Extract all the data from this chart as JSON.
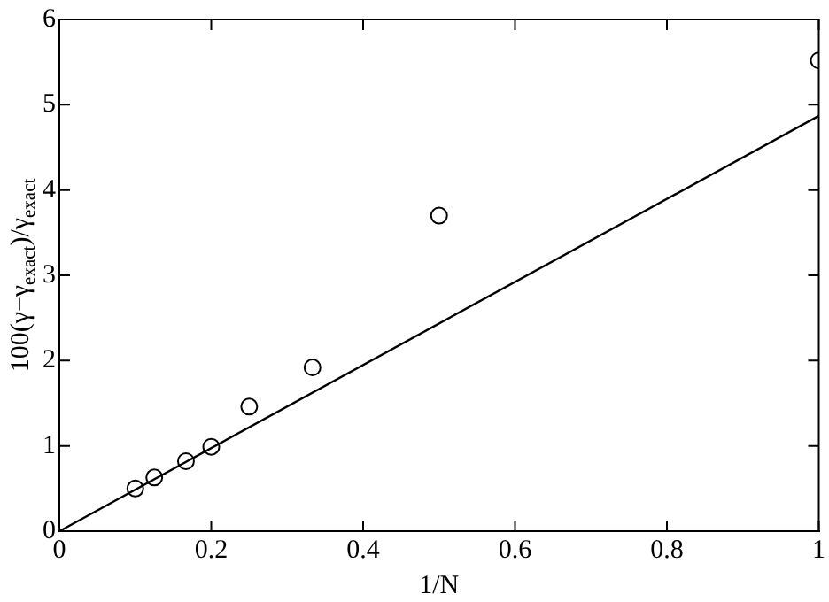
{
  "chart_data": {
    "type": "scatter",
    "xlabel": "1/N",
    "ylabel": "100(γ−γ$_{exact}$)/γ$_{exact}$",
    "xlim": [
      0,
      1
    ],
    "xticks": [
      0,
      0.2,
      0.4,
      0.6,
      0.8,
      1
    ],
    "ylim": [
      0,
      6
    ],
    "yticks": [
      0,
      1,
      2,
      3,
      4,
      5,
      6
    ],
    "grid": false,
    "legend": false,
    "marker": "circle",
    "series": [
      {
        "color": "#000000",
        "x": [
          0.1,
          0.125,
          0.1667,
          0.2,
          0.25,
          0.3333,
          0.5,
          1
        ],
        "values": [
          0.5,
          0.63,
          0.82,
          0.99,
          1.46,
          1.92,
          3.7,
          5.52
        ]
      },
      {
        "type": "line",
        "color": "#000000",
        "x": [
          0,
          1
        ],
        "values": [
          0,
          4.87
        ],
        "marker": "none",
        "line_style": "solid"
      }
    ]
  }
}
